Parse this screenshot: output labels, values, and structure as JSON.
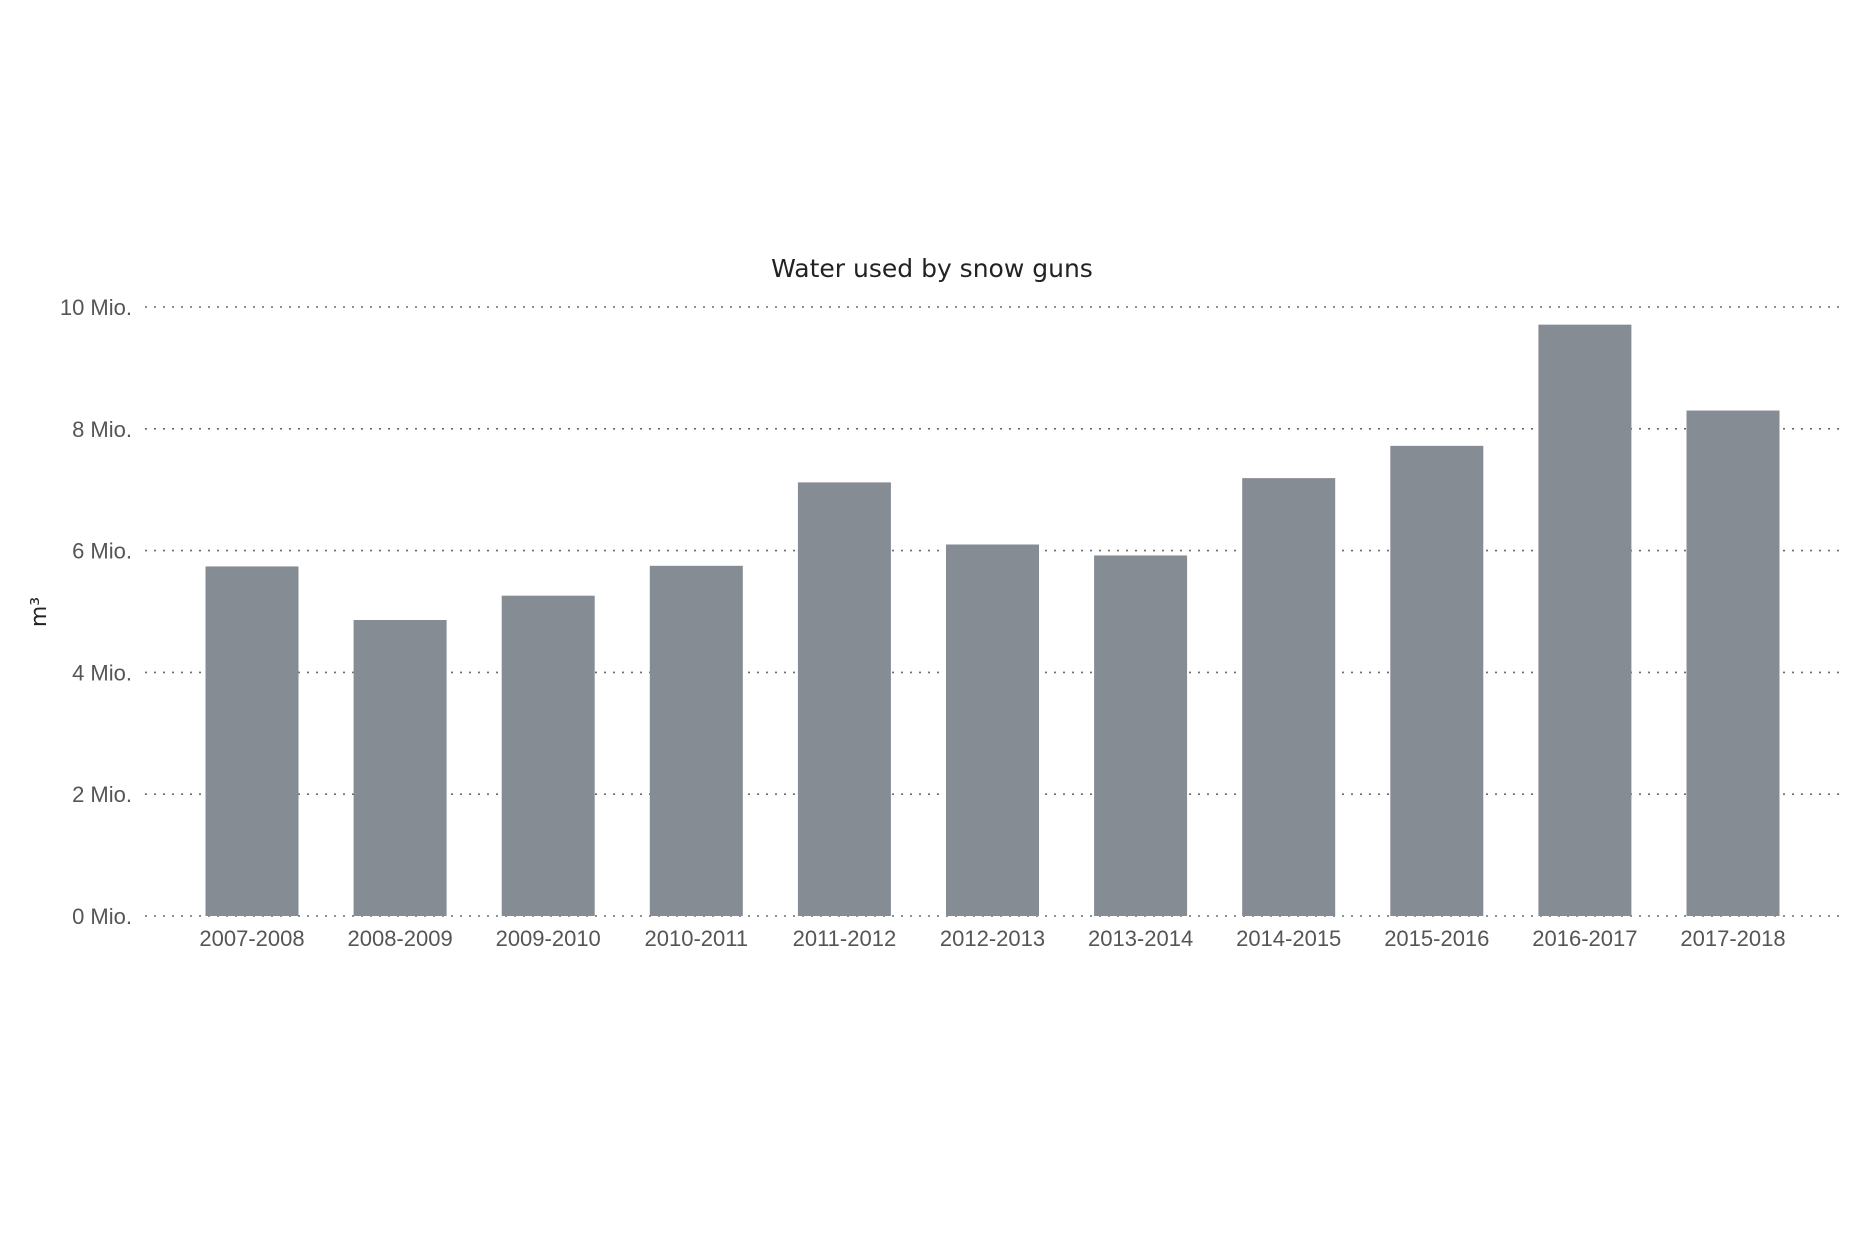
{
  "chart_data": {
    "type": "bar",
    "title": "Water used by snow guns",
    "xlabel": "",
    "ylabel": "m³",
    "categories": [
      "2007-2008",
      "2008-2009",
      "2009-2010",
      "2010-2011",
      "2011-2012",
      "2012-2013",
      "2013-2014",
      "2014-2015",
      "2015-2016",
      "2016-2017",
      "2017-2018"
    ],
    "values": [
      5740000,
      4860000,
      5260000,
      5750000,
      7120000,
      6100000,
      5920000,
      7190000,
      7720000,
      9710000,
      8300000
    ],
    "ylim": [
      0,
      10000000
    ],
    "y_ticks": [
      {
        "value": 0,
        "label": "0 Mio."
      },
      {
        "value": 2000000,
        "label": "2 Mio."
      },
      {
        "value": 4000000,
        "label": "4 Mio."
      },
      {
        "value": 6000000,
        "label": "6 Mio."
      },
      {
        "value": 8000000,
        "label": "8 Mio."
      },
      {
        "value": 10000000,
        "label": "10 Mio."
      }
    ],
    "grid": true,
    "legend": "none",
    "bar_color": "#858c93"
  }
}
